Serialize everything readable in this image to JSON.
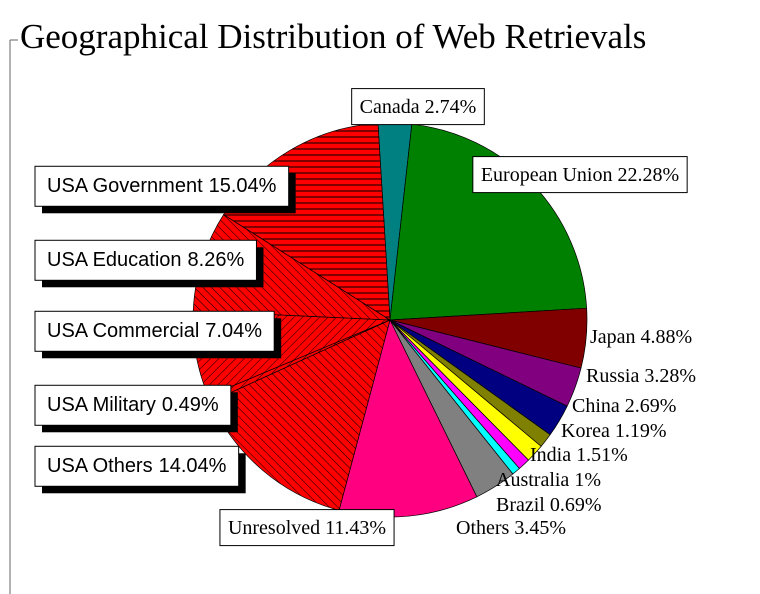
{
  "chart_data": {
    "type": "pie",
    "title": "Geographical Distribution of Web Retrievals",
    "categories": [
      "Canada",
      "European Union",
      "Japan",
      "Russia",
      "China",
      "Korea",
      "India",
      "Australia",
      "Brazil",
      "Others",
      "Unresolved",
      "USA Others",
      "USA Military",
      "USA Commercial",
      "USA Education",
      "USA Government"
    ],
    "values": [
      2.74,
      22.28,
      4.88,
      3.28,
      2.69,
      1.19,
      1.51,
      1,
      0.69,
      3.45,
      11.43,
      14.04,
      0.49,
      7.04,
      8.26,
      15.04
    ],
    "value_labels": [
      "2.74%",
      "22.28%",
      "4.88%",
      "3.28%",
      "2.69%",
      "1.19%",
      "1.51%",
      "1%",
      "0.69%",
      "3.45%",
      "11.43%",
      "14.04%",
      "0.49%",
      "7.04%",
      "8.26%",
      "15.04%"
    ],
    "colors": [
      "#008080",
      "#008000",
      "#800000",
      "#800080",
      "#000080",
      "#808000",
      "#ffff00",
      "#ff00ff",
      "#00ffff",
      "#808080",
      "#ff0080",
      "#ff0000",
      "#ff0000",
      "#ff0000",
      "#ff0000",
      "#ff0000"
    ],
    "hatch": [
      null,
      null,
      null,
      null,
      null,
      null,
      null,
      null,
      null,
      null,
      null,
      "back-diagonal",
      "diagonal",
      "diagonal",
      "back-diagonal",
      "horizontal"
    ]
  }
}
